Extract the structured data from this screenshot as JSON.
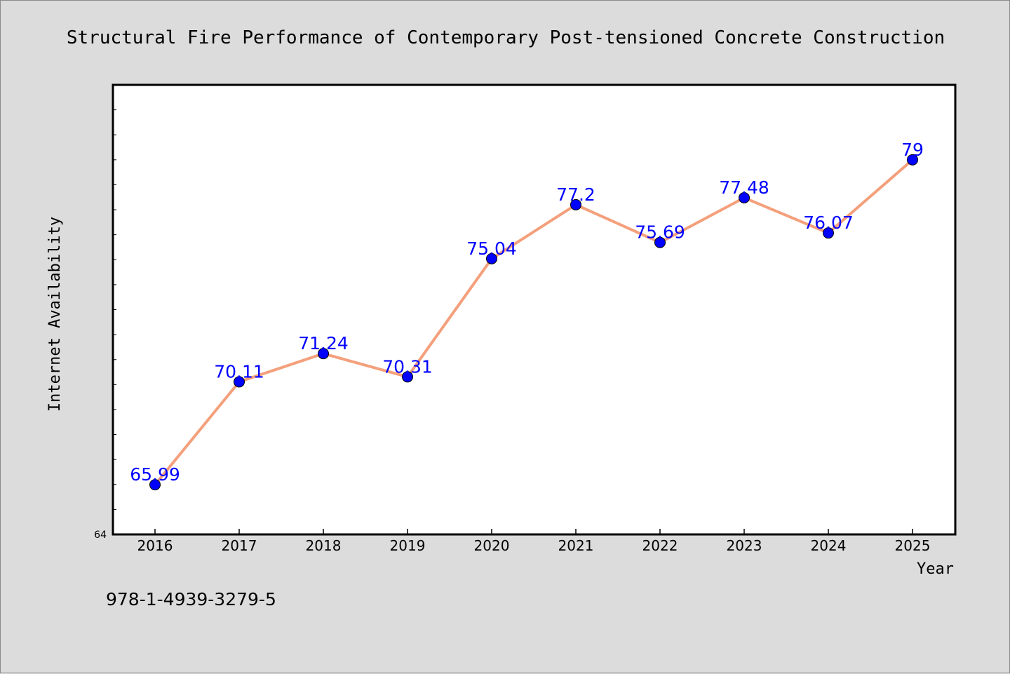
{
  "chart_data": {
    "type": "line",
    "title": "Structural Fire Performance of Contemporary Post-tensioned Concrete Construction",
    "xlabel": "Year",
    "ylabel": "Internet Availability",
    "categories": [
      "2016",
      "2017",
      "2018",
      "2019",
      "2020",
      "2021",
      "2022",
      "2023",
      "2024",
      "2025"
    ],
    "values": [
      65.99,
      70.11,
      71.24,
      70.31,
      75.04,
      77.2,
      75.69,
      77.48,
      76.07,
      79
    ],
    "data_labels": [
      "65.99",
      "70.11",
      "71.24",
      "70.31",
      "75.04",
      "77.2",
      "75.69",
      "77.48",
      "76.07",
      "79"
    ],
    "ylim": [
      64,
      82
    ],
    "ytick_labels": [
      "64"
    ],
    "grid": false,
    "line_color": "#f4a07c",
    "marker_color": "#0000ff",
    "label_color": "#0000ff"
  },
  "footer": {
    "isbn": "978-1-4939-3279-5"
  }
}
